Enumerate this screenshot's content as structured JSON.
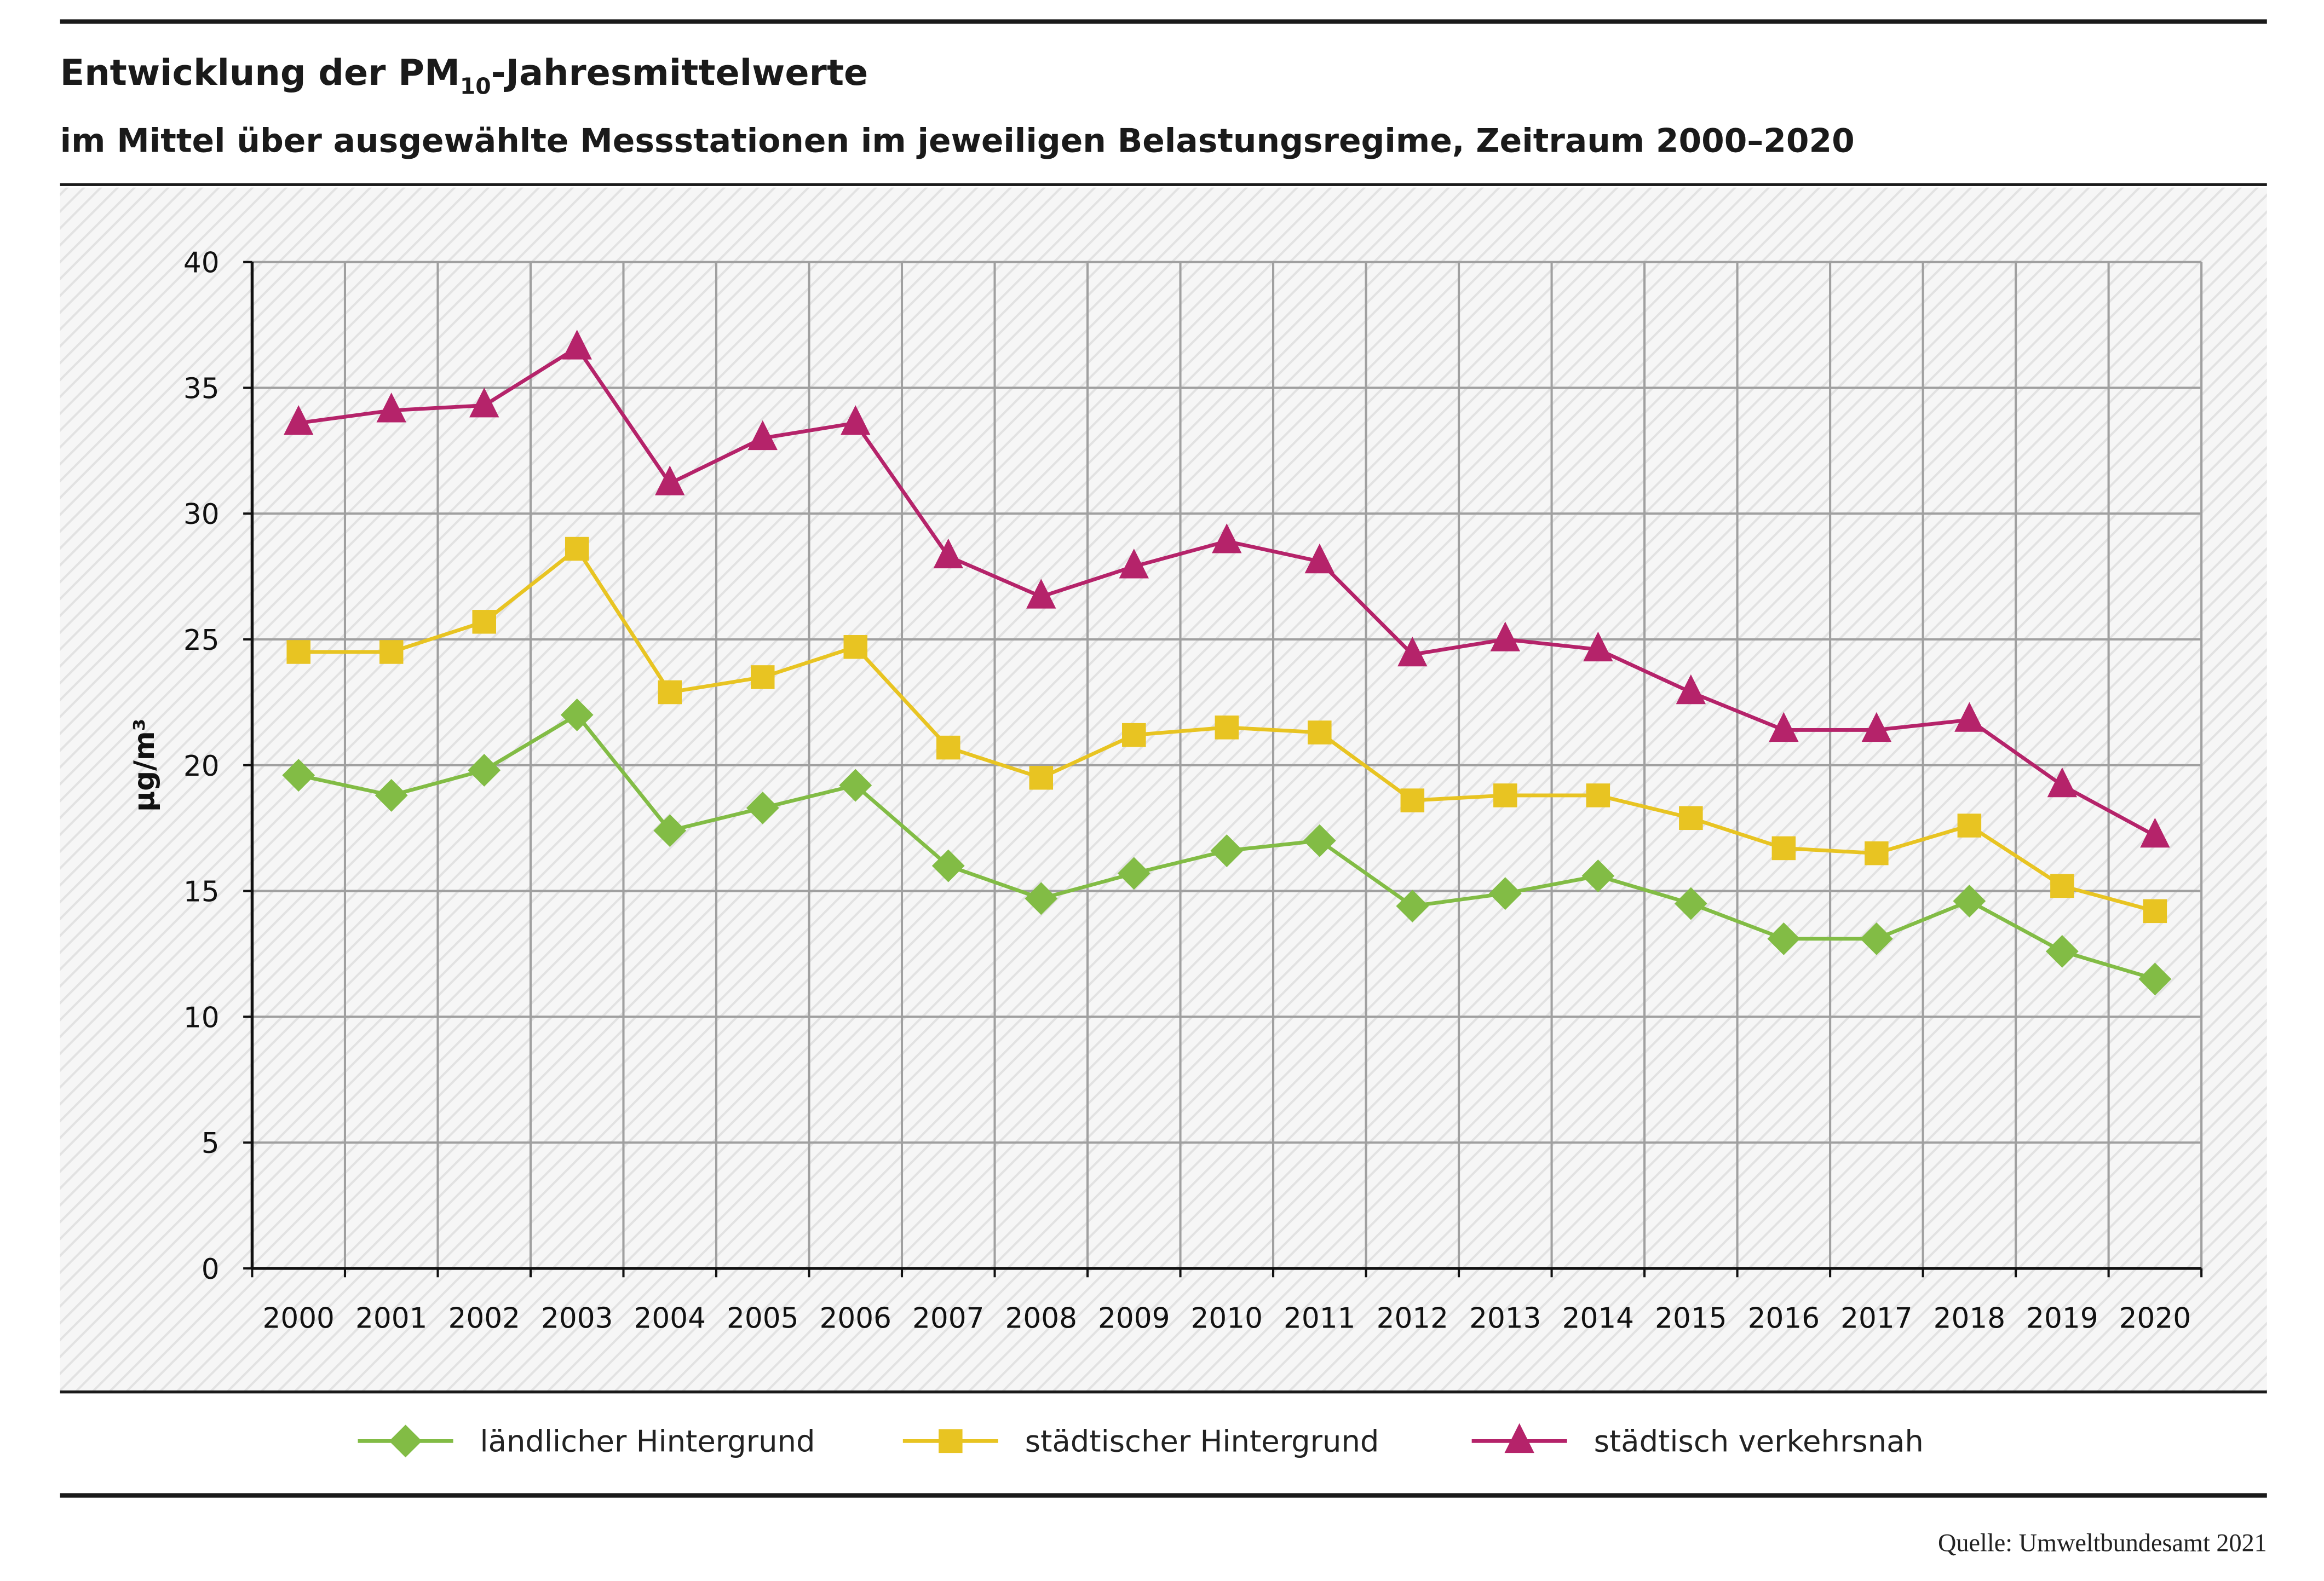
{
  "chart_data": {
    "type": "line",
    "title_parts": [
      "Entwicklung der PM",
      "10",
      "-Jahresmittelwerte"
    ],
    "title": "Entwicklung der PM10-Jahresmittelwerte",
    "subtitle": "im Mittel über ausgewählte Messstationen im jeweiligen Belastungsregime, Zeitraum 2000–2020",
    "xlabel": "",
    "ylabel": "µg/m³",
    "ylim": [
      0,
      40
    ],
    "yticks": [
      "0",
      "5",
      "10",
      "15",
      "20",
      "25",
      "30",
      "35",
      "40"
    ],
    "categories": [
      "2000",
      "2001",
      "2002",
      "2003",
      "2004",
      "2005",
      "2006",
      "2007",
      "2008",
      "2009",
      "2010",
      "2011",
      "2012",
      "2013",
      "2014",
      "2015",
      "2016",
      "2017",
      "2018",
      "2019",
      "2020"
    ],
    "grid": true,
    "legend_position": "bottom",
    "series": [
      {
        "name": "ländlicher Hintergrund",
        "marker": "diamond",
        "color": "#82bc45",
        "values": [
          19.6,
          18.8,
          19.8,
          22.0,
          17.4,
          18.3,
          19.2,
          16.0,
          14.7,
          15.7,
          16.6,
          17.0,
          14.4,
          14.9,
          15.6,
          14.5,
          13.1,
          13.1,
          14.6,
          12.6,
          11.5
        ]
      },
      {
        "name": "städtischer Hintergrund",
        "marker": "square",
        "color": "#e8c422",
        "values": [
          24.5,
          24.5,
          25.7,
          28.6,
          22.9,
          23.5,
          24.7,
          20.7,
          19.5,
          21.2,
          21.5,
          21.3,
          18.6,
          18.8,
          18.8,
          17.9,
          16.7,
          16.5,
          17.6,
          15.2,
          14.2
        ]
      },
      {
        "name": "städtisch verkehrsnah",
        "marker": "triangle",
        "color": "#b5236a",
        "values": [
          33.6,
          34.1,
          34.3,
          36.6,
          31.2,
          33.0,
          33.6,
          28.3,
          26.7,
          27.9,
          28.9,
          28.1,
          24.4,
          25.0,
          24.6,
          22.9,
          21.4,
          21.4,
          21.8,
          19.2,
          17.2
        ]
      }
    ],
    "source": "Quelle: Umweltbundesamt 2021"
  }
}
